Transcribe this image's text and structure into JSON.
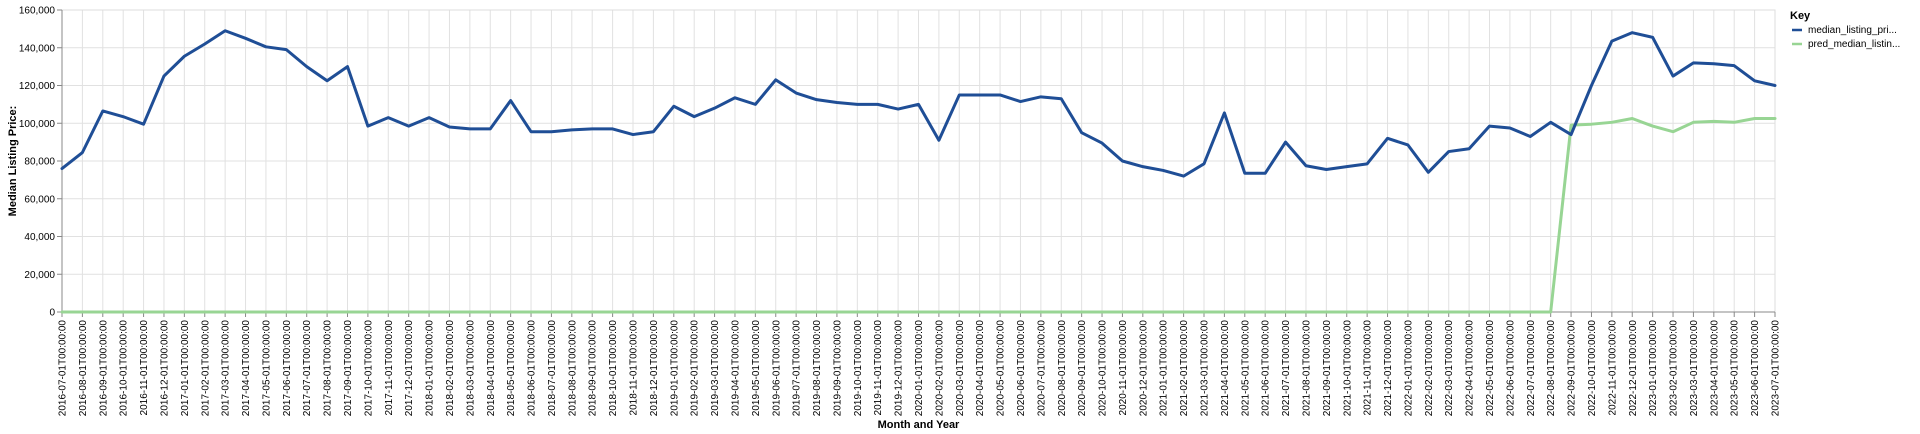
{
  "chart_data": {
    "type": "line",
    "xlabel": "Month and Year",
    "ylabel": "Median Listing Price:",
    "ylim": [
      0,
      160000
    ],
    "yticks": [
      0,
      20000,
      40000,
      60000,
      80000,
      100000,
      120000,
      140000,
      160000
    ],
    "ytick_labels": [
      "0",
      "20,000",
      "40,000",
      "60,000",
      "80,000",
      "100,000",
      "120,000",
      "140,000",
      "160,000"
    ],
    "grid": true,
    "legend_position": "right",
    "legend_title": "Key",
    "x": [
      "2016-07-01T00:00:00",
      "2016-08-01T00:00:00",
      "2016-09-01T00:00:00",
      "2016-10-01T00:00:00",
      "2016-11-01T00:00:00",
      "2016-12-01T00:00:00",
      "2017-01-01T00:00:00",
      "2017-02-01T00:00:00",
      "2017-03-01T00:00:00",
      "2017-04-01T00:00:00",
      "2017-05-01T00:00:00",
      "2017-06-01T00:00:00",
      "2017-07-01T00:00:00",
      "2017-08-01T00:00:00",
      "2017-09-01T00:00:00",
      "2017-10-01T00:00:00",
      "2017-11-01T00:00:00",
      "2017-12-01T00:00:00",
      "2018-01-01T00:00:00",
      "2018-02-01T00:00:00",
      "2018-03-01T00:00:00",
      "2018-04-01T00:00:00",
      "2018-05-01T00:00:00",
      "2018-06-01T00:00:00",
      "2018-07-01T00:00:00",
      "2018-08-01T00:00:00",
      "2018-09-01T00:00:00",
      "2018-10-01T00:00:00",
      "2018-11-01T00:00:00",
      "2018-12-01T00:00:00",
      "2019-01-01T00:00:00",
      "2019-02-01T00:00:00",
      "2019-03-01T00:00:00",
      "2019-04-01T00:00:00",
      "2019-05-01T00:00:00",
      "2019-06-01T00:00:00",
      "2019-07-01T00:00:00",
      "2019-08-01T00:00:00",
      "2019-09-01T00:00:00",
      "2019-10-01T00:00:00",
      "2019-11-01T00:00:00",
      "2019-12-01T00:00:00",
      "2020-01-01T00:00:00",
      "2020-02-01T00:00:00",
      "2020-03-01T00:00:00",
      "2020-04-01T00:00:00",
      "2020-05-01T00:00:00",
      "2020-06-01T00:00:00",
      "2020-07-01T00:00:00",
      "2020-08-01T00:00:00",
      "2020-09-01T00:00:00",
      "2020-10-01T00:00:00",
      "2020-11-01T00:00:00",
      "2020-12-01T00:00:00",
      "2021-01-01T00:00:00",
      "2021-02-01T00:00:00",
      "2021-03-01T00:00:00",
      "2021-04-01T00:00:00",
      "2021-05-01T00:00:00",
      "2021-06-01T00:00:00",
      "2021-07-01T00:00:00",
      "2021-08-01T00:00:00",
      "2021-09-01T00:00:00",
      "2021-10-01T00:00:00",
      "2021-11-01T00:00:00",
      "2021-12-01T00:00:00",
      "2022-01-01T00:00:00",
      "2022-02-01T00:00:00",
      "2022-03-01T00:00:00",
      "2022-04-01T00:00:00",
      "2022-05-01T00:00:00",
      "2022-06-01T00:00:00",
      "2022-07-01T00:00:00",
      "2022-08-01T00:00:00",
      "2022-09-01T00:00:00",
      "2022-10-01T00:00:00",
      "2022-11-01T00:00:00",
      "2022-12-01T00:00:00",
      "2023-01-01T00:00:00",
      "2023-02-01T00:00:00",
      "2023-03-01T00:00:00",
      "2023-04-01T00:00:00",
      "2023-05-01T00:00:00",
      "2023-06-01T00:00:00",
      "2023-07-01T00:00:00"
    ],
    "series": [
      {
        "name": "median_listing_pri...",
        "color": "#1f4e96",
        "values": [
          76000,
          84500,
          106500,
          103500,
          99500,
          125000,
          135500,
          142000,
          149000,
          145000,
          140500,
          139000,
          130000,
          122500,
          130000,
          98500,
          103000,
          98500,
          103000,
          98000,
          97000,
          97000,
          112000,
          95500,
          95500,
          96500,
          97000,
          97000,
          94000,
          95500,
          109000,
          103500,
          108000,
          113500,
          110000,
          123000,
          116000,
          112500,
          111000,
          110000,
          110000,
          107500,
          110000,
          91000,
          115000,
          115000,
          115000,
          111500,
          114000,
          113000,
          95000,
          89500,
          80000,
          77000,
          75000,
          72000,
          78500,
          105500,
          73500,
          73500,
          90000,
          77500,
          75500,
          77000,
          78500,
          92000,
          88500,
          74000,
          85000,
          86500,
          98500,
          97500,
          93000,
          100500,
          94000,
          120000,
          143500,
          148000,
          145500,
          125000,
          132000,
          131500,
          130500,
          122500,
          120000
        ]
      },
      {
        "name": "pred_median_listin...",
        "color": "#98d594",
        "values": [
          0,
          0,
          0,
          0,
          0,
          0,
          0,
          0,
          0,
          0,
          0,
          0,
          0,
          0,
          0,
          0,
          0,
          0,
          0,
          0,
          0,
          0,
          0,
          0,
          0,
          0,
          0,
          0,
          0,
          0,
          0,
          0,
          0,
          0,
          0,
          0,
          0,
          0,
          0,
          0,
          0,
          0,
          0,
          0,
          0,
          0,
          0,
          0,
          0,
          0,
          0,
          0,
          0,
          0,
          0,
          0,
          0,
          0,
          0,
          0,
          0,
          0,
          0,
          0,
          0,
          0,
          0,
          0,
          0,
          0,
          0,
          0,
          0,
          0,
          99000,
          99500,
          100500,
          102500,
          98500,
          95500,
          100500,
          101000,
          100500,
          102500,
          102500
        ]
      }
    ]
  }
}
